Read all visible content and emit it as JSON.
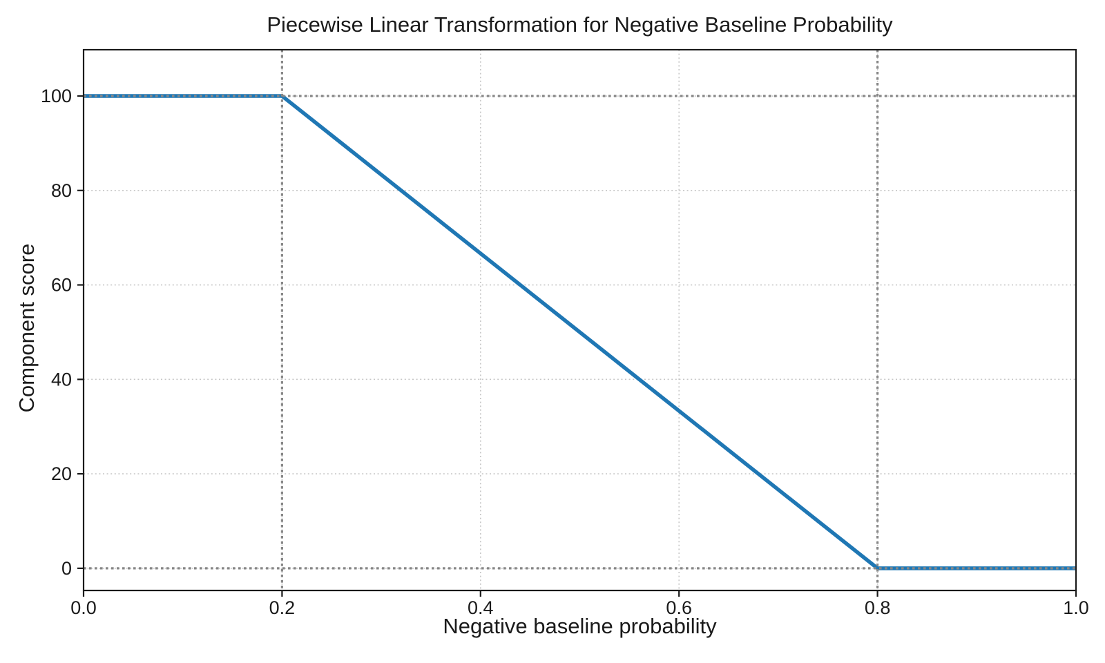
{
  "chart_data": {
    "type": "line",
    "title": "Piecewise Linear Transformation for Negative Baseline Probability",
    "xlabel": "Negative baseline probability",
    "ylabel": "Component score",
    "xlim": [
      0,
      1
    ],
    "ylim": [
      -4.7,
      109.8
    ],
    "xticks": [
      0,
      0.2,
      0.4,
      0.6,
      0.8,
      1
    ],
    "xtick_labels": [
      "0.0",
      "0.2",
      "0.4",
      "0.6",
      "0.8",
      "1.0"
    ],
    "yticks": [
      0,
      20,
      40,
      60,
      80,
      100
    ],
    "ytick_labels": [
      "0",
      "20",
      "40",
      "60",
      "80",
      "100"
    ],
    "grid": {
      "show": true,
      "style": "dotted",
      "color": "#c7c7c7"
    },
    "reference_lines": {
      "vertical_x": [
        0.2,
        0.8
      ],
      "horizontal_y": [
        0,
        100
      ],
      "color": "#878787",
      "style": "dotted"
    },
    "legend": null,
    "series": [
      {
        "name": "Component score",
        "color": "#1f77b4",
        "line_width": 5.5,
        "points": [
          [
            0,
            100
          ],
          [
            0.2,
            100
          ],
          [
            0.8,
            0
          ],
          [
            1.0,
            0
          ]
        ]
      }
    ],
    "background": "#ffffff",
    "spine_color": "#1a1a1a",
    "text_color": "#1a1a1a"
  }
}
